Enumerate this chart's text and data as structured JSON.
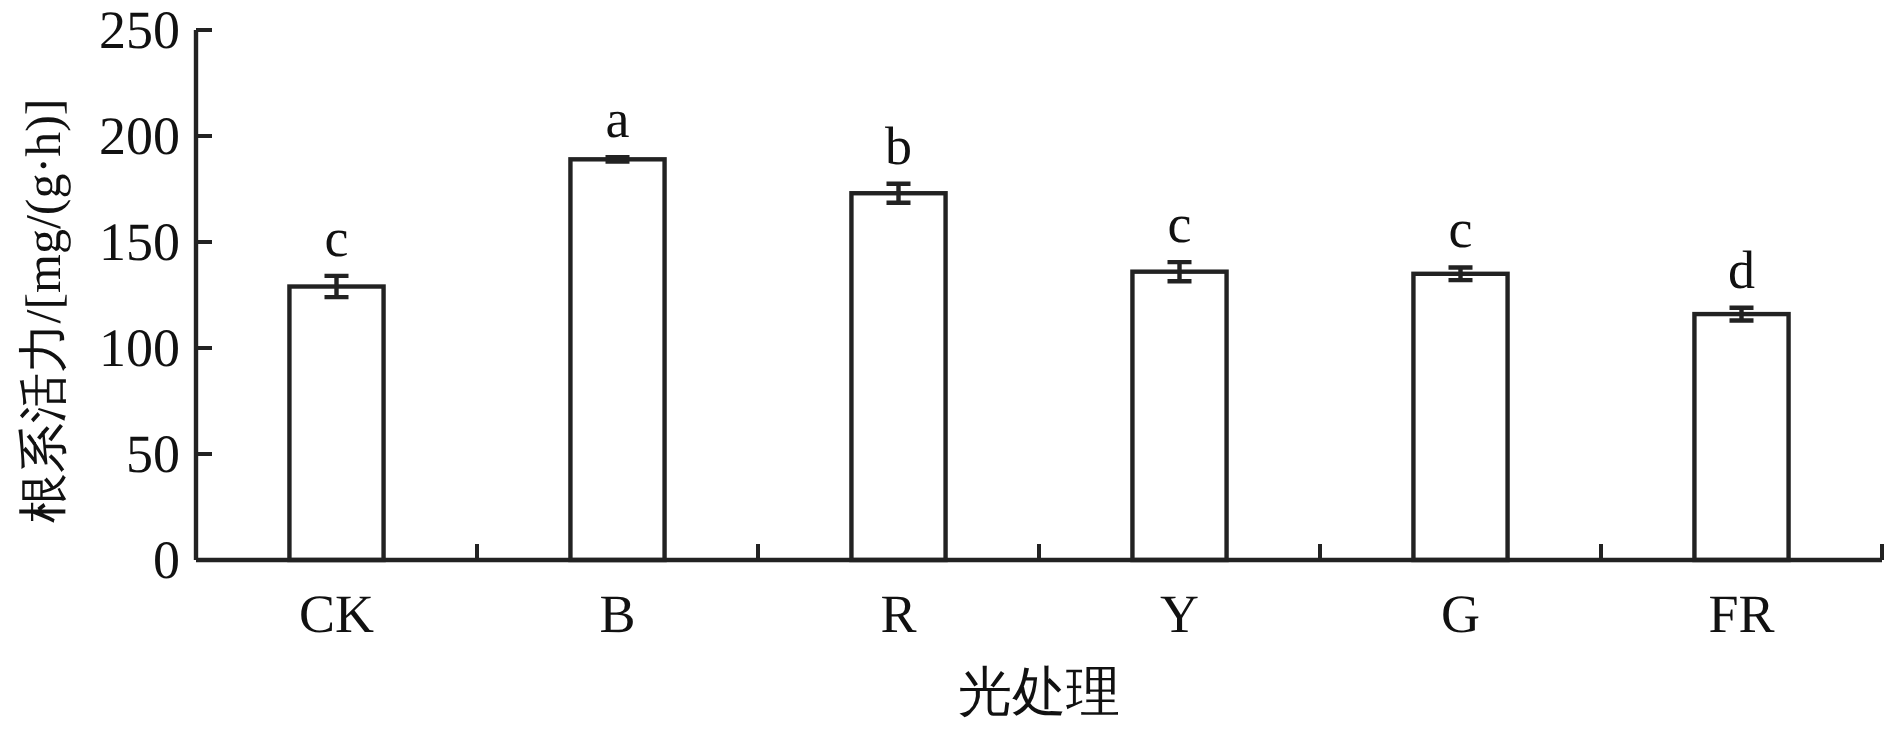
{
  "chart_data": {
    "type": "bar",
    "xlabel": "光处理",
    "ylabel": "根系活力/[mg/(g·h)]",
    "categories": [
      "CK",
      "B",
      "R",
      "Y",
      "G",
      "FR"
    ],
    "values": [
      129,
      189,
      173,
      136,
      135,
      116
    ],
    "errors": [
      5,
      1,
      4.5,
      4.5,
      3,
      3
    ],
    "color": "#ffffff",
    "ylim": [
      0,
      250
    ],
    "yticks": [
      0,
      50,
      100,
      150,
      200,
      250
    ],
    "annotations": [
      {
        "text": "c",
        "x": "CK",
        "y": 134
      },
      {
        "text": "a",
        "x": "B",
        "y": 190
      },
      {
        "text": "b",
        "x": "R",
        "y": 177.5
      },
      {
        "text": "c",
        "x": "Y",
        "y": 140.5
      },
      {
        "text": "c",
        "x": "G",
        "y": 138
      },
      {
        "text": "d",
        "x": "FR",
        "y": 119
      }
    ]
  }
}
